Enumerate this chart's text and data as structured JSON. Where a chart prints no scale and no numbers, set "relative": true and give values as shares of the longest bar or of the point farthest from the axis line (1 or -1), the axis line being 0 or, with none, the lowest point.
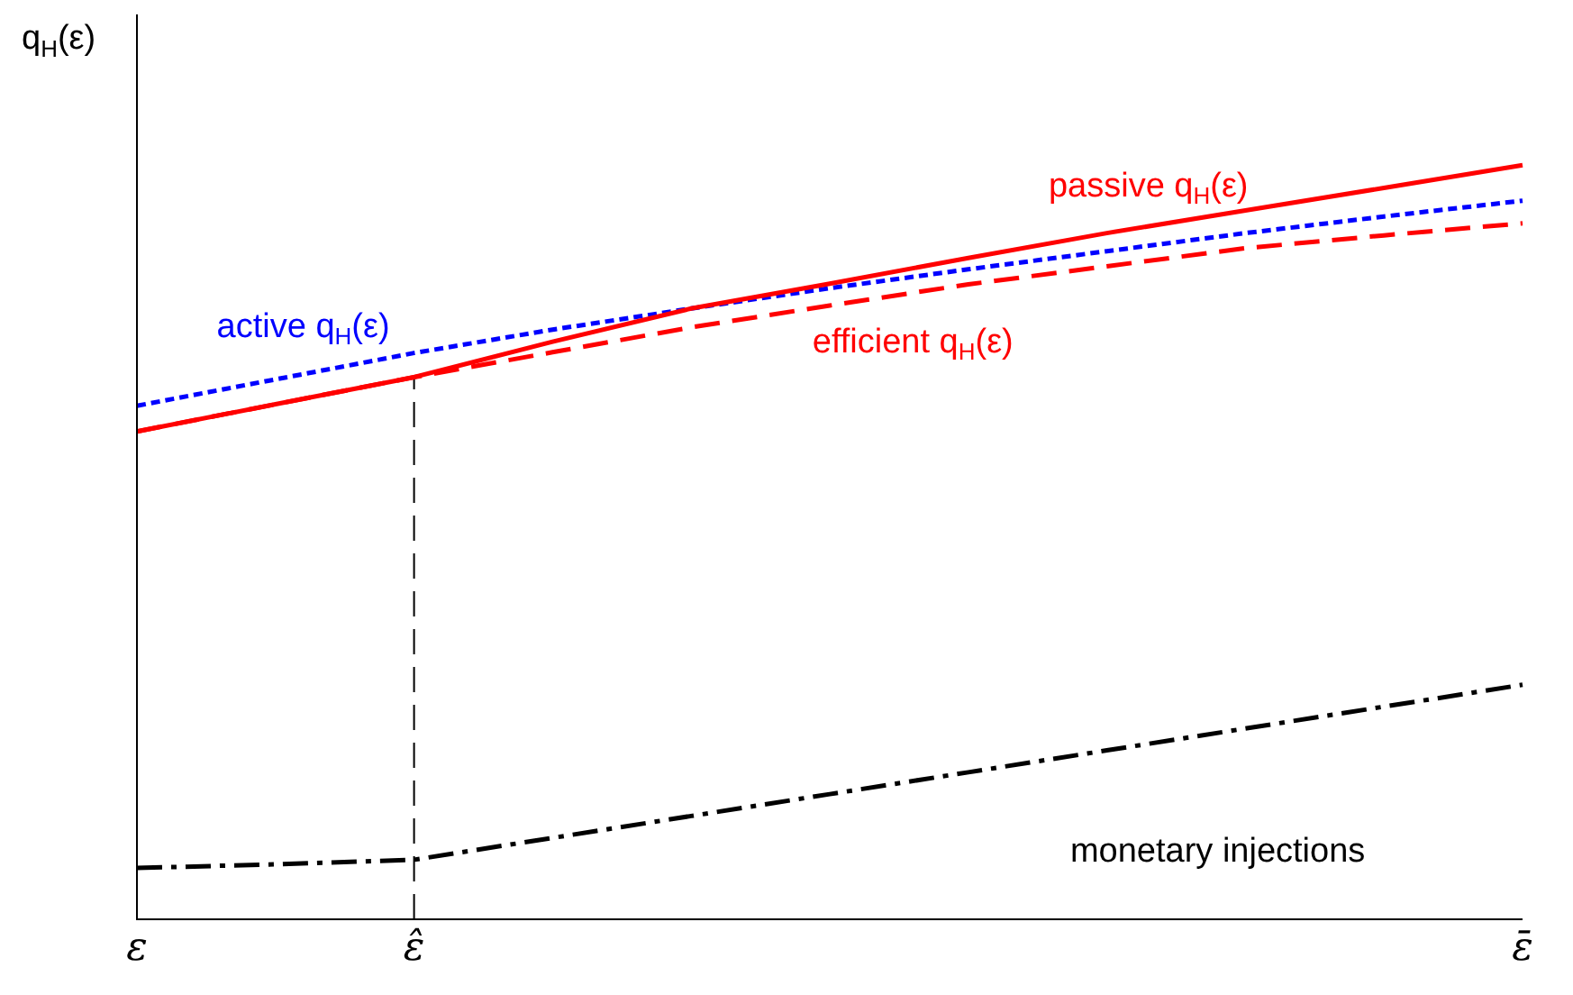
{
  "chart_data": {
    "type": "line",
    "relative": true,
    "ylabel": "q$_{H}$(ε)",
    "categories": [
      "ε",
      null,
      "ε̂",
      null,
      null,
      null,
      null,
      null,
      null,
      null,
      "ε̄"
    ],
    "grid": false,
    "legend": false,
    "marker": "none",
    "ref_lines": [
      {
        "axis": "x",
        "value": "ε̂",
        "label": null,
        "color": "#000000",
        "line_style": "dashed"
      }
    ],
    "series": [
      {
        "name": "passive q$_{H}$(ε)",
        "color": "#ff0000",
        "line_style": "solid",
        "values": [
          0.647,
          0.683,
          0.719,
          0.766,
          0.81,
          0.843,
          0.877,
          0.91,
          0.94,
          0.97,
          1.0
        ]
      },
      {
        "name": "active q$_{H}$(ε)",
        "color": "#0000ff",
        "line_style": "dotted",
        "values": [
          0.681,
          0.716,
          0.751,
          0.782,
          0.81,
          0.837,
          0.862,
          0.886,
          0.91,
          0.932,
          0.953
        ]
      },
      {
        "name": "efficient q$_{H}$(ε)",
        "color": "#ff0000",
        "line_style": "dashed",
        "values": [
          0.647,
          0.683,
          0.719,
          0.752,
          0.785,
          0.814,
          0.842,
          0.866,
          0.89,
          0.907,
          0.923
        ]
      },
      {
        "name": "monetary injections",
        "color": "#000000",
        "line_style": "dashdot",
        "values": [
          0.068,
          0.073,
          0.079,
          0.108,
          0.137,
          0.166,
          0.195,
          0.224,
          0.253,
          0.282,
          0.311
        ]
      }
    ]
  }
}
